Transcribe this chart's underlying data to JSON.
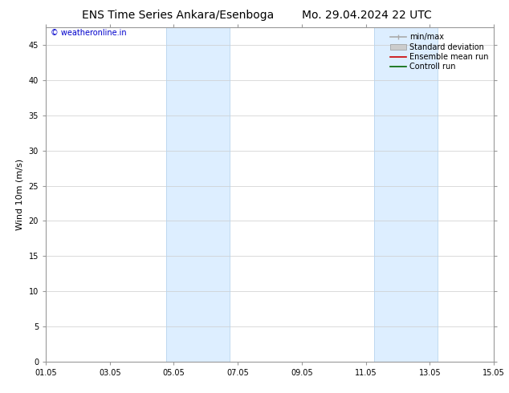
{
  "title_left": "ENS Time Series Ankara/Esenboga",
  "title_right": "Mo. 29.04.2024 22 UTC",
  "ylabel": "Wind 10m (m/s)",
  "watermark": "© weatheronline.in",
  "watermark_color": "#0000cc",
  "xlim_start": 0,
  "xlim_end": 14,
  "ylim_min": 0,
  "ylim_max": 47.5,
  "yticks": [
    0,
    5,
    10,
    15,
    20,
    25,
    30,
    35,
    40,
    45
  ],
  "xtick_labels": [
    "01.05",
    "03.05",
    "05.05",
    "07.05",
    "09.05",
    "11.05",
    "13.05",
    "15.05"
  ],
  "xtick_positions": [
    0,
    2,
    4,
    6,
    8,
    10,
    12,
    14
  ],
  "shaded_bands": [
    {
      "xmin": 3.75,
      "xmax": 5.75
    },
    {
      "xmin": 10.25,
      "xmax": 12.25
    }
  ],
  "shaded_color": "#ddeeff",
  "shaded_edge_color": "#b8d4ee",
  "bg_color": "#ffffff",
  "grid_color": "#cccccc",
  "legend_items": [
    {
      "label": "min/max",
      "color": "#aaaaaa",
      "lw": 1.2,
      "style": "minmax"
    },
    {
      "label": "Standard deviation",
      "color": "#cccccc",
      "lw": 6,
      "style": "band"
    },
    {
      "label": "Ensemble mean run",
      "color": "#cc0000",
      "lw": 1.2,
      "style": "line"
    },
    {
      "label": "Controll run",
      "color": "#006600",
      "lw": 1.2,
      "style": "line"
    }
  ],
  "title_fontsize": 10,
  "tick_fontsize": 7,
  "ylabel_fontsize": 8,
  "watermark_fontsize": 7,
  "legend_fontsize": 7
}
